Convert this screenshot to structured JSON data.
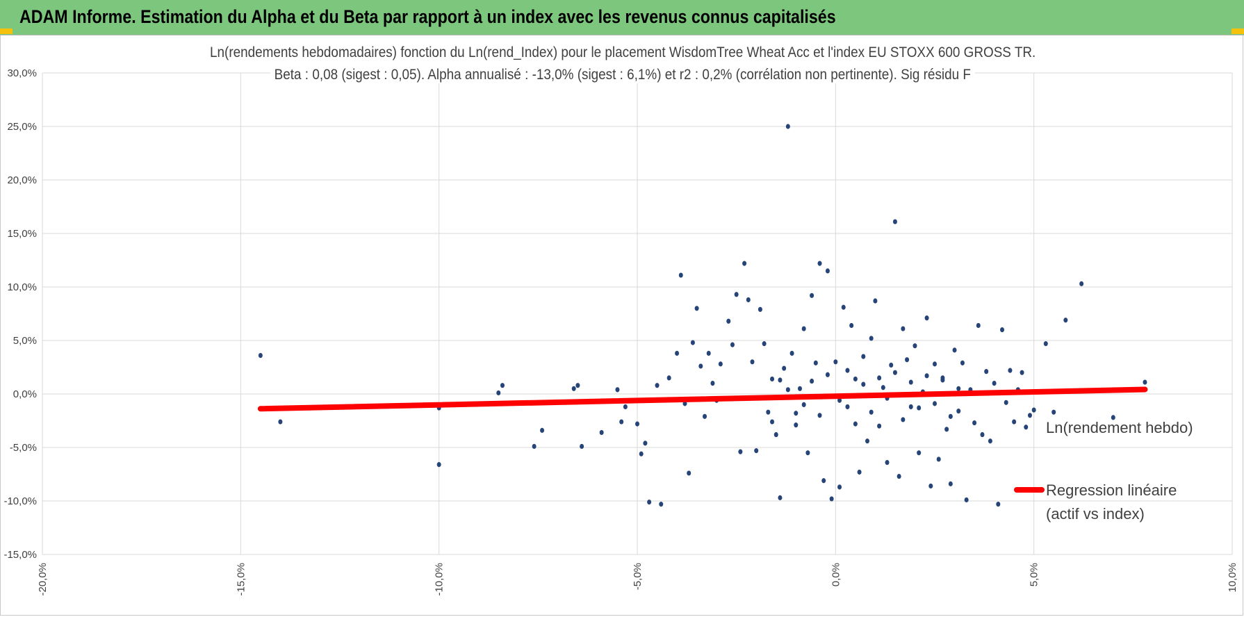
{
  "banner": {
    "title": "ADAM Informe. Estimation du Alpha et du Beta par rapport à un index avec les revenus connus capitalisés",
    "color": "#7dc67d"
  },
  "chart_data": {
    "type": "scatter",
    "title": "Ln(rendements hebdomadaires) fonction du Ln(rend_Index) pour le placement WisdomTree Wheat Acc et l'index EU STOXX 600 GROSS TR.",
    "subtitle": "Beta : 0,08 (sigest : 0,05).  Alpha annualisé : -13,0% (sigest : 6,1%) et r2 : 0,2% (corrélation non pertinente). Sig résidu F",
    "xlim": [
      -0.2,
      0.1
    ],
    "ylim": [
      -0.15,
      0.3
    ],
    "x_ticks": [
      -0.2,
      -0.15,
      -0.1,
      -0.05,
      0.0,
      0.05,
      0.1
    ],
    "x_tick_labels": [
      "-20,0%",
      "-15,0%",
      "-10,0%",
      "-5,0%",
      "0,0%",
      "5,0%",
      "10,0%"
    ],
    "y_ticks": [
      -0.15,
      -0.1,
      -0.05,
      0.0,
      0.05,
      0.1,
      0.15,
      0.2,
      0.25,
      0.3
    ],
    "y_tick_labels": [
      "-15,0%",
      "-10,0%",
      "-5,0%",
      "0,0%",
      "5,0%",
      "10,0%",
      "15,0%",
      "20,0%",
      "25,0%",
      "30,0%"
    ],
    "grid": true,
    "legend_position": "right",
    "series": [
      {
        "name": "Ln(rendement hebdo)",
        "color": "#264478",
        "marker": "circle",
        "points": [
          [
            -0.145,
            0.036
          ],
          [
            -0.14,
            -0.026
          ],
          [
            -0.1,
            -0.013
          ],
          [
            -0.1,
            -0.066
          ],
          [
            -0.084,
            0.008
          ],
          [
            -0.085,
            0.001
          ],
          [
            -0.074,
            -0.034
          ],
          [
            -0.076,
            -0.049
          ],
          [
            -0.066,
            0.005
          ],
          [
            -0.065,
            0.008
          ],
          [
            -0.064,
            -0.049
          ],
          [
            -0.059,
            -0.036
          ],
          [
            -0.055,
            0.004
          ],
          [
            -0.054,
            -0.026
          ],
          [
            -0.053,
            -0.012
          ],
          [
            -0.05,
            -0.028
          ],
          [
            -0.049,
            -0.056
          ],
          [
            -0.048,
            -0.046
          ],
          [
            -0.047,
            -0.101
          ],
          [
            -0.045,
            0.008
          ],
          [
            -0.044,
            -0.103
          ],
          [
            -0.042,
            0.015
          ],
          [
            -0.04,
            0.038
          ],
          [
            -0.039,
            0.111
          ],
          [
            -0.038,
            -0.009
          ],
          [
            -0.037,
            -0.074
          ],
          [
            -0.036,
            0.048
          ],
          [
            -0.035,
            0.08
          ],
          [
            -0.034,
            0.026
          ],
          [
            -0.033,
            -0.021
          ],
          [
            -0.032,
            0.038
          ],
          [
            -0.031,
            0.01
          ],
          [
            -0.03,
            -0.006
          ],
          [
            -0.029,
            0.028
          ],
          [
            -0.027,
            0.068
          ],
          [
            -0.026,
            0.046
          ],
          [
            -0.025,
            0.093
          ],
          [
            -0.024,
            -0.054
          ],
          [
            -0.023,
            0.122
          ],
          [
            -0.022,
            0.088
          ],
          [
            -0.021,
            0.03
          ],
          [
            -0.02,
            -0.053
          ],
          [
            -0.019,
            0.079
          ],
          [
            -0.018,
            0.047
          ],
          [
            -0.017,
            -0.017
          ],
          [
            -0.016,
            0.014
          ],
          [
            -0.015,
            -0.038
          ],
          [
            -0.014,
            -0.097
          ],
          [
            -0.013,
            0.024
          ],
          [
            -0.012,
            0.25
          ],
          [
            -0.011,
            0.038
          ],
          [
            -0.01,
            -0.029
          ],
          [
            -0.009,
            0.005
          ],
          [
            -0.008,
            0.061
          ],
          [
            -0.007,
            -0.055
          ],
          [
            -0.006,
            0.092
          ],
          [
            -0.005,
            0.029
          ],
          [
            -0.004,
            0.122
          ],
          [
            -0.003,
            -0.081
          ],
          [
            -0.002,
            0.115
          ],
          [
            -0.001,
            -0.098
          ],
          [
            0.0,
            0.03
          ],
          [
            0.001,
            -0.087
          ],
          [
            0.002,
            0.081
          ],
          [
            0.003,
            -0.012
          ],
          [
            0.004,
            0.064
          ],
          [
            0.005,
            0.014
          ],
          [
            0.006,
            -0.073
          ],
          [
            0.007,
            0.035
          ],
          [
            0.008,
            -0.044
          ],
          [
            0.009,
            0.052
          ],
          [
            0.01,
            0.087
          ],
          [
            0.011,
            -0.03
          ],
          [
            0.012,
            0.006
          ],
          [
            0.013,
            -0.064
          ],
          [
            0.014,
            0.027
          ],
          [
            0.015,
            0.161
          ],
          [
            0.016,
            -0.077
          ],
          [
            0.017,
            0.061
          ],
          [
            0.018,
            0.032
          ],
          [
            0.019,
            -0.012
          ],
          [
            0.02,
            0.045
          ],
          [
            0.021,
            -0.055
          ],
          [
            0.022,
            0.002
          ],
          [
            0.023,
            0.071
          ],
          [
            0.024,
            -0.086
          ],
          [
            0.025,
            0.028
          ],
          [
            0.026,
            -0.061
          ],
          [
            0.027,
            0.015
          ],
          [
            0.028,
            -0.033
          ],
          [
            0.029,
            -0.084
          ],
          [
            0.03,
            0.041
          ],
          [
            0.031,
            -0.016
          ],
          [
            0.032,
            0.029
          ],
          [
            0.033,
            -0.099
          ],
          [
            0.034,
            0.004
          ],
          [
            0.035,
            -0.027
          ],
          [
            0.036,
            0.064
          ],
          [
            0.037,
            -0.038
          ],
          [
            0.038,
            0.021
          ],
          [
            0.039,
            -0.044
          ],
          [
            0.04,
            0.01
          ],
          [
            0.041,
            -0.103
          ],
          [
            0.042,
            0.06
          ],
          [
            0.043,
            -0.008
          ],
          [
            0.044,
            0.022
          ],
          [
            0.045,
            -0.026
          ],
          [
            0.046,
            0.004
          ],
          [
            0.047,
            0.02
          ],
          [
            0.048,
            -0.031
          ],
          [
            0.049,
            -0.02
          ],
          [
            0.05,
            -0.015
          ],
          [
            0.053,
            0.047
          ],
          [
            0.055,
            -0.017
          ],
          [
            0.058,
            0.069
          ],
          [
            0.062,
            0.103
          ],
          [
            0.07,
            -0.022
          ],
          [
            0.078,
            0.011
          ],
          [
            -0.008,
            -0.01
          ],
          [
            -0.006,
            0.012
          ],
          [
            -0.004,
            -0.02
          ],
          [
            -0.002,
            0.018
          ],
          [
            0.001,
            -0.006
          ],
          [
            0.003,
            0.022
          ],
          [
            0.005,
            -0.028
          ],
          [
            0.007,
            0.009
          ],
          [
            0.009,
            -0.017
          ],
          [
            0.011,
            0.015
          ],
          [
            0.013,
            -0.004
          ],
          [
            0.015,
            0.02
          ],
          [
            0.017,
            -0.024
          ],
          [
            0.019,
            0.011
          ],
          [
            0.021,
            -0.013
          ],
          [
            0.023,
            0.017
          ],
          [
            -0.012,
            0.004
          ],
          [
            -0.01,
            -0.018
          ],
          [
            -0.014,
            0.013
          ],
          [
            -0.016,
            -0.026
          ],
          [
            0.025,
            -0.009
          ],
          [
            0.027,
            0.013
          ],
          [
            0.029,
            -0.021
          ],
          [
            0.031,
            0.005
          ]
        ]
      },
      {
        "name": "Regression linéaire\n(actif vs index)",
        "legend_lines": [
          "Regression linéaire",
          "(actif vs index)"
        ],
        "color": "#ff0000",
        "line": [
          [
            -0.145,
            -0.0138
          ],
          [
            0.078,
            0.0042
          ]
        ]
      }
    ]
  }
}
